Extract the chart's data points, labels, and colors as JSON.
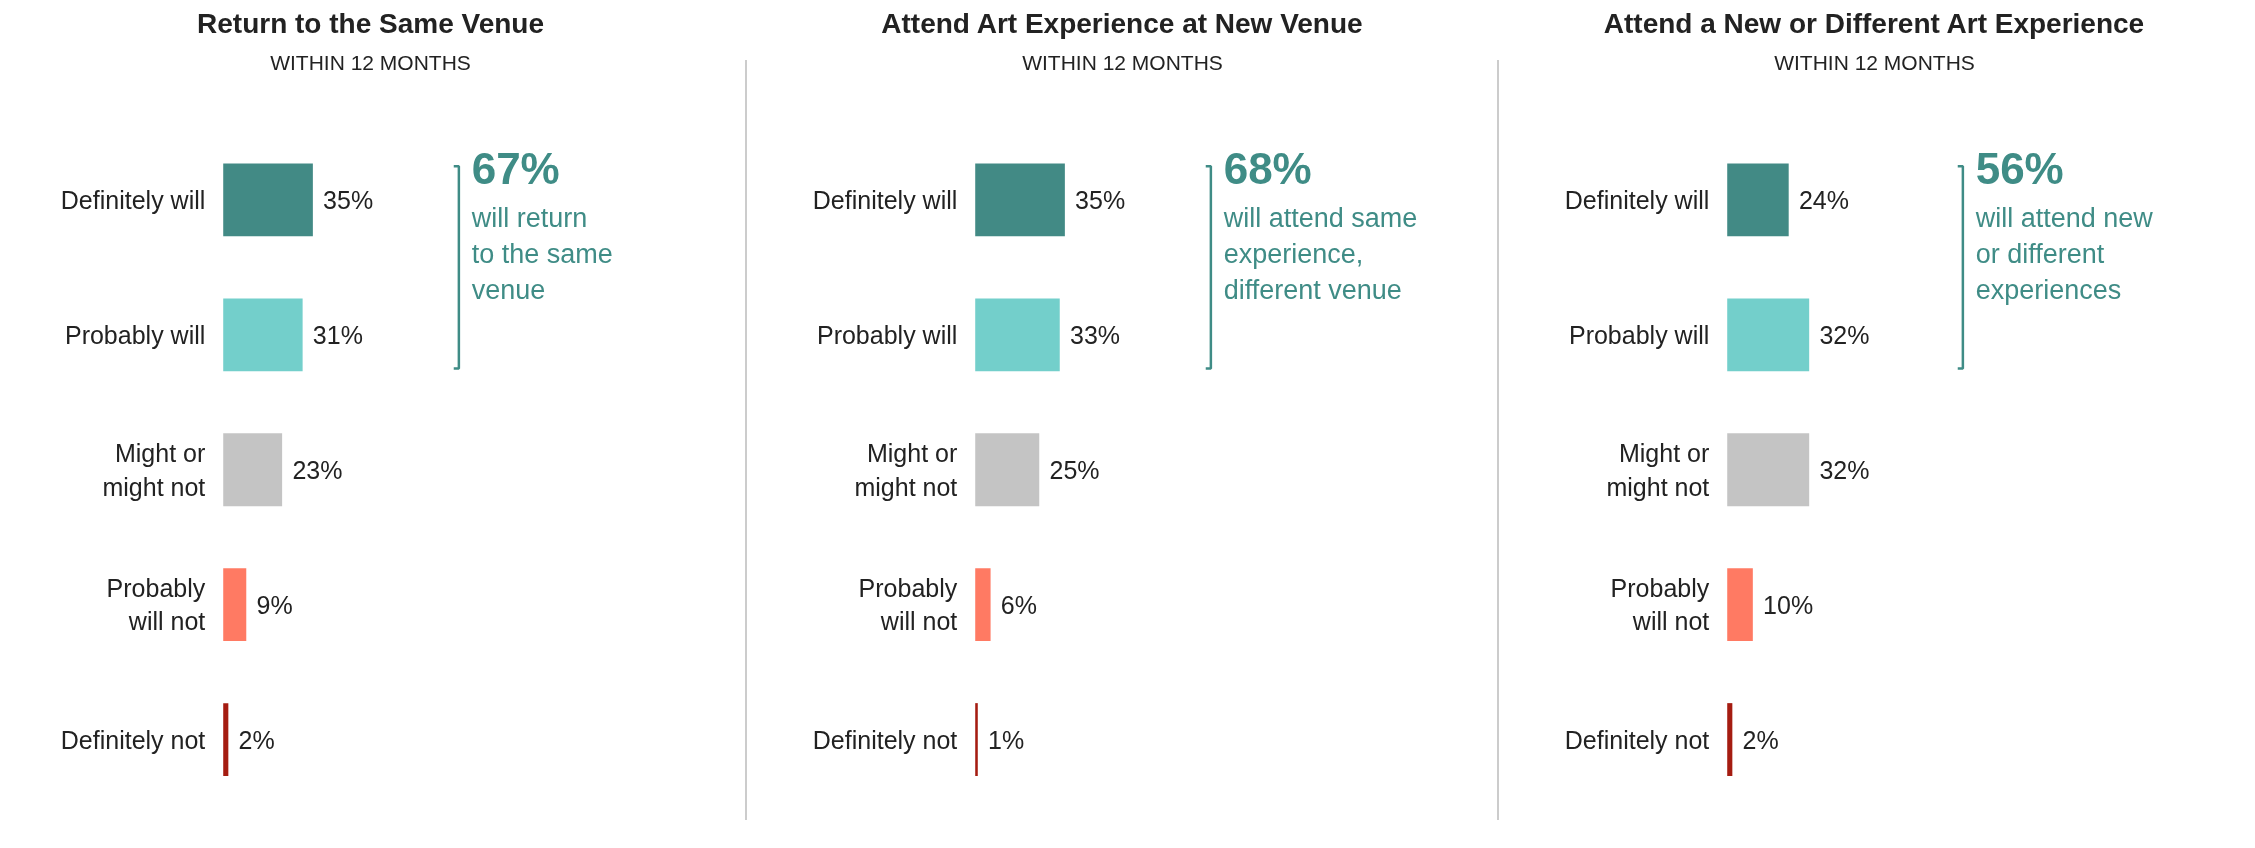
{
  "chart_data": [
    {
      "type": "bar",
      "orientation": "horizontal",
      "title": "Return to the Same Venue",
      "subtitle": "WITHIN 12 MONTHS",
      "categories": [
        "Definitely will",
        "Probably will",
        "Might or might not",
        "Probably will not",
        "Definitely not"
      ],
      "values": [
        35,
        31,
        23,
        9,
        2
      ],
      "value_labels": [
        "35%",
        "31%",
        "23%",
        "9%",
        "2%"
      ],
      "colors": [
        "#428a85",
        "#73cfcb",
        "#c4c4c4",
        "#ff7a63",
        "#a51c11"
      ],
      "annotations": [
        "67%",
        "will return\nto the same\nvenue"
      ],
      "grid": false
    },
    {
      "type": "bar",
      "orientation": "horizontal",
      "title": "Attend Art Experience at New Venue",
      "subtitle": "WITHIN 12 MONTHS",
      "categories": [
        "Definitely will",
        "Probably will",
        "Might or might not",
        "Probably will not",
        "Definitely not"
      ],
      "values": [
        35,
        33,
        25,
        6,
        1
      ],
      "value_labels": [
        "35%",
        "33%",
        "25%",
        "6%",
        "1%"
      ],
      "colors": [
        "#428a85",
        "#73cfcb",
        "#c4c4c4",
        "#ff7a63",
        "#a51c11"
      ],
      "annotations": [
        "68%",
        "will attend same\nexperience,\ndifferent venue"
      ],
      "grid": false
    },
    {
      "type": "bar",
      "orientation": "horizontal",
      "title": "Attend a New or Different Art Experience",
      "subtitle": "WITHIN 12 MONTHS",
      "categories": [
        "Definitely will",
        "Probably will",
        "Might or might not",
        "Probably will not",
        "Definitely not"
      ],
      "values": [
        24,
        32,
        32,
        10,
        2
      ],
      "value_labels": [
        "24%",
        "32%",
        "32%",
        "10%",
        "2%"
      ],
      "colors": [
        "#428a85",
        "#73cfcb",
        "#c4c4c4",
        "#ff7a63",
        "#a51c11"
      ],
      "annotations": [
        "56%",
        "will attend new\nor different\nexperiences"
      ],
      "grid": false
    }
  ]
}
